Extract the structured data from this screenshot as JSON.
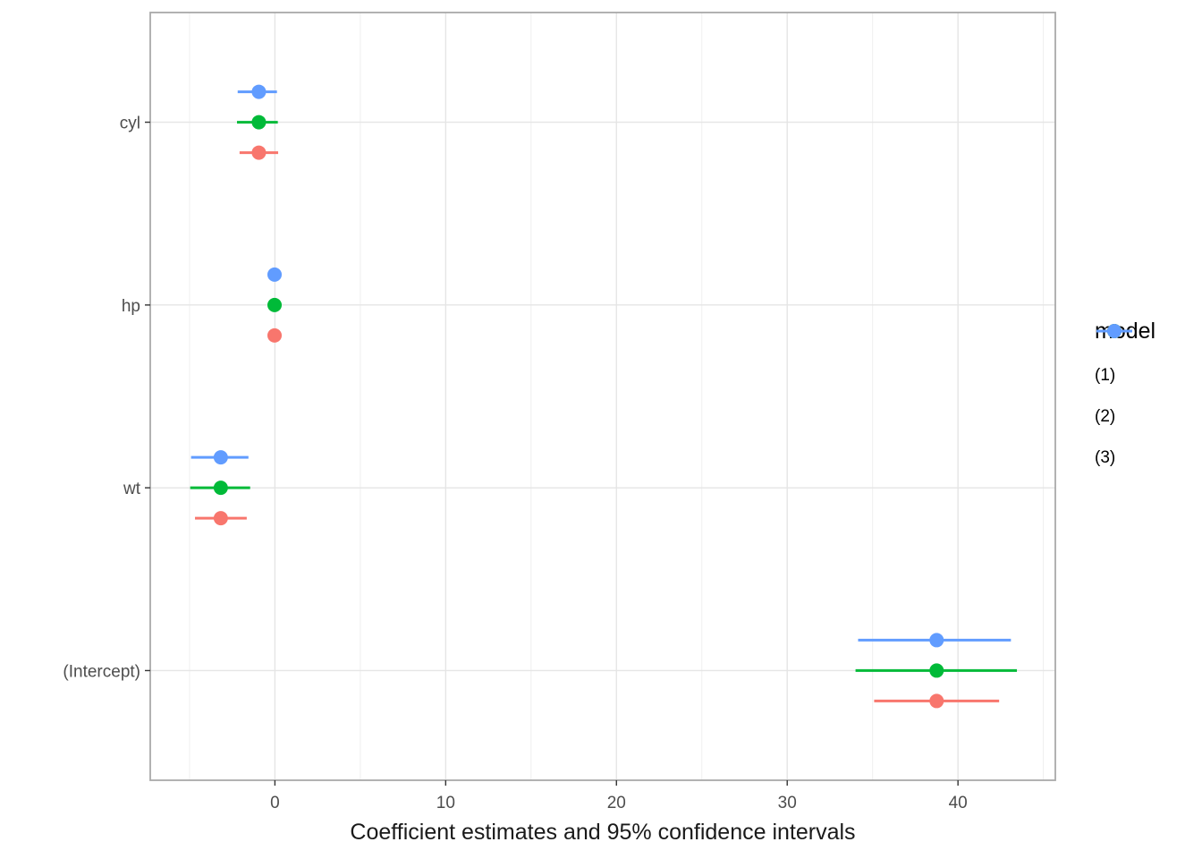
{
  "chart_data": {
    "type": "scatter",
    "subtype": "dot-and-whisker-coefficient-plot",
    "title": "",
    "xlabel": "Coefficient estimates and 95% confidence intervals",
    "ylabel": "",
    "categories": [
      "cyl",
      "hp",
      "wt",
      "(Intercept)"
    ],
    "xticks": [
      0,
      10,
      20,
      30,
      40
    ],
    "x_minor_gridlines": [
      -5,
      5,
      15,
      25,
      35,
      45
    ],
    "xlim": [
      -7.3,
      45.7
    ],
    "grid": true,
    "legend": {
      "title": "model",
      "position": "right"
    },
    "series": [
      {
        "name": "(1)",
        "color": "#F8766D",
        "points": [
          {
            "term": "cyl",
            "estimate": -0.94,
            "ci_low": -2.07,
            "ci_high": 0.19
          },
          {
            "term": "hp",
            "estimate": -0.02,
            "ci_low": -0.04,
            "ci_high": 0.01
          },
          {
            "term": "wt",
            "estimate": -3.17,
            "ci_low": -4.68,
            "ci_high": -1.65
          },
          {
            "term": "(Intercept)",
            "estimate": 38.75,
            "ci_low": 35.09,
            "ci_high": 42.41
          }
        ]
      },
      {
        "name": "(2)",
        "color": "#00BA38",
        "points": [
          {
            "term": "cyl",
            "estimate": -0.94,
            "ci_low": -2.22,
            "ci_high": 0.17
          },
          {
            "term": "hp",
            "estimate": -0.02,
            "ci_low": -0.05,
            "ci_high": 0.01
          },
          {
            "term": "wt",
            "estimate": -3.17,
            "ci_low": -4.96,
            "ci_high": -1.45
          },
          {
            "term": "(Intercept)",
            "estimate": 38.75,
            "ci_low": 34.0,
            "ci_high": 43.45
          }
        ]
      },
      {
        "name": "(3)",
        "color": "#619CFF",
        "points": [
          {
            "term": "cyl",
            "estimate": -0.94,
            "ci_low": -2.18,
            "ci_high": 0.12
          },
          {
            "term": "hp",
            "estimate": -0.02,
            "ci_low": -0.05,
            "ci_high": 0.01
          },
          {
            "term": "wt",
            "estimate": -3.17,
            "ci_low": -4.91,
            "ci_high": -1.55
          },
          {
            "term": "(Intercept)",
            "estimate": 38.75,
            "ci_low": 34.15,
            "ci_high": 43.1
          }
        ]
      }
    ],
    "colors": {
      "panel_background": "#FFFFFF",
      "panel_border": "#A9A9A9",
      "grid_major": "#E5E5E5",
      "grid_minor": "#EFEFEF",
      "tick": "#333333",
      "axis_text": "#4D4D4D",
      "axis_title": "#1A1A1A"
    }
  }
}
